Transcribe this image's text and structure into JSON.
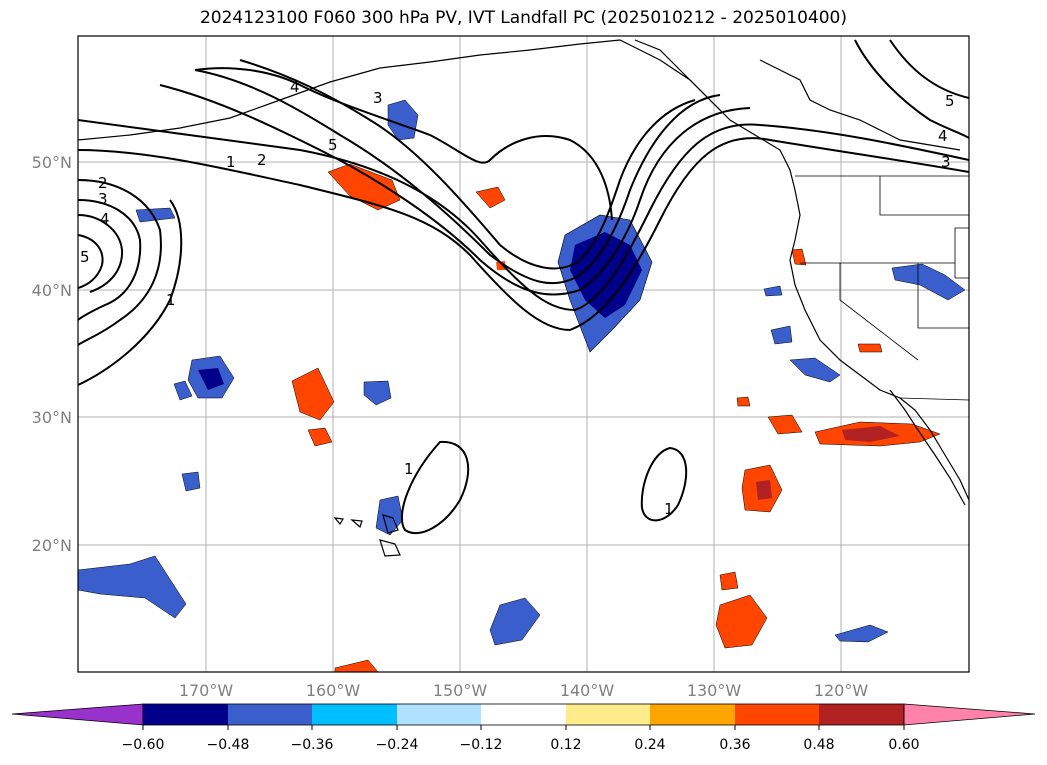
{
  "title": "2024123100 F060 300 hPa PV, IVT Landfall PC (2025010212 - 2025010400)",
  "lat_labels": [
    "50°N",
    "40°N",
    "30°N",
    "20°N"
  ],
  "lon_labels": [
    "170°W",
    "160°W",
    "150°W",
    "140°W",
    "130°W",
    "120°W"
  ],
  "contour_labels": [
    "1",
    "2",
    "2",
    "3",
    "3",
    "3",
    "4",
    "4",
    "4",
    "5",
    "5",
    "5",
    "1",
    "1",
    "1"
  ],
  "colorbar": {
    "tick_labels": [
      "−0.60",
      "−0.48",
      "−0.36",
      "−0.24",
      "−0.12",
      "0.12",
      "0.24",
      "0.36",
      "0.48",
      "0.60"
    ],
    "colors": [
      "#9932cc",
      "#00008b",
      "#3a5fcd",
      "#00bfff",
      "#b0e2ff",
      "#ffffff",
      "#ffec8b",
      "#ffa500",
      "#ff4500",
      "#b22222",
      "#ff82ab"
    ]
  },
  "legend_colors": {
    "neg_strong": "#00008b",
    "neg_mid": "#3a5fcd",
    "neg_light": "#00bfff",
    "neg_pale": "#b0e2ff",
    "pos_pale": "#ffec8b",
    "pos_light": "#ffa500",
    "pos_mid": "#ff4500",
    "pos_strong": "#b22222"
  }
}
